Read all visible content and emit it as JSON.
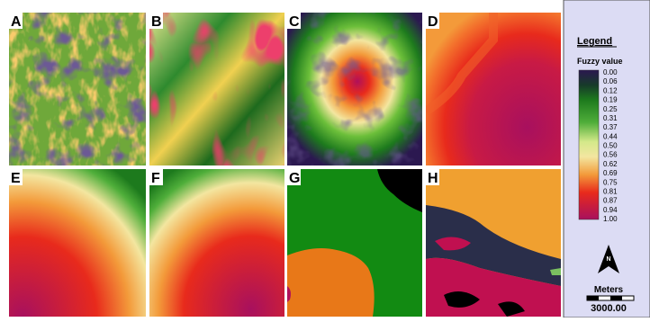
{
  "panels": [
    {
      "label": "A"
    },
    {
      "label": "B"
    },
    {
      "label": "C"
    },
    {
      "label": "D"
    },
    {
      "label": "E"
    },
    {
      "label": "F"
    },
    {
      "label": "G"
    },
    {
      "label": "H"
    }
  ],
  "legend": {
    "title": "Legend",
    "subtitle": "Fuzzy value",
    "labels": [
      "0.00",
      "0.06",
      "0.12",
      "0.19",
      "0.25",
      "0.31",
      "0.37",
      "0.44",
      "0.50",
      "0.56",
      "0.62",
      "0.69",
      "0.75",
      "0.81",
      "0.87",
      "0.94",
      "1.00"
    ]
  },
  "north_arrow": {
    "label": "N"
  },
  "scale_bar": {
    "unit": "Meters",
    "value": "3000.00"
  }
}
